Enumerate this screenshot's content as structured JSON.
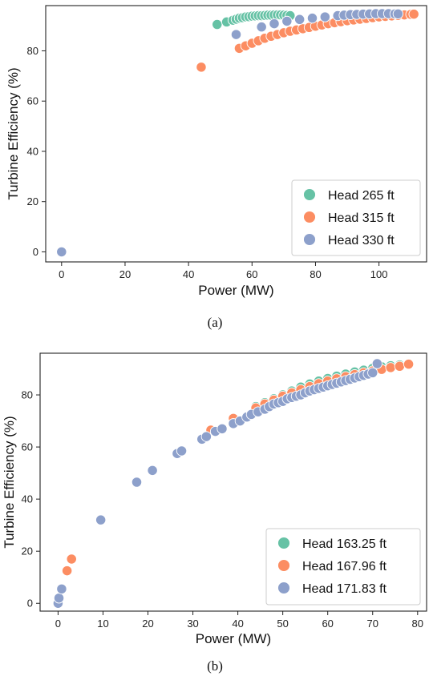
{
  "chart_data": [
    {
      "type": "scatter",
      "caption": "(a)",
      "xlabel": "Power (MW)",
      "ylabel": "Turbine Efficiency (%)",
      "xlim": [
        -5,
        115
      ],
      "ylim": [
        -4,
        98
      ],
      "xticks": [
        0,
        20,
        40,
        60,
        80,
        100
      ],
      "yticks": [
        0,
        20,
        40,
        60,
        80
      ],
      "grid": false,
      "legend": "bottom-right",
      "series": [
        {
          "name": "Head 265 ft",
          "color": "#66c2a5",
          "points": [
            [
              49,
              90.5
            ],
            [
              52,
              91.5
            ],
            [
              54,
              92.2
            ],
            [
              55,
              92.6
            ],
            [
              56,
              93
            ],
            [
              57,
              93.2
            ],
            [
              58,
              93.5
            ],
            [
              59,
              93.6
            ],
            [
              60,
              93.8
            ],
            [
              61,
              93.9
            ],
            [
              62,
              94
            ],
            [
              63,
              94
            ],
            [
              64,
              94.1
            ],
            [
              65,
              94.2
            ],
            [
              66,
              94.2
            ],
            [
              67,
              94.3
            ],
            [
              68,
              94.3
            ],
            [
              69,
              94.3
            ],
            [
              70,
              94.2
            ],
            [
              71,
              94.1
            ],
            [
              72,
              94
            ]
          ]
        },
        {
          "name": "Head 315 ft",
          "color": "#fc8d62",
          "points": [
            [
              44,
              73.5
            ],
            [
              56,
              81
            ],
            [
              58,
              82
            ],
            [
              60,
              83
            ],
            [
              62,
              84
            ],
            [
              64,
              85
            ],
            [
              66,
              85.8
            ],
            [
              68,
              86.5
            ],
            [
              70,
              87.2
            ],
            [
              72,
              87.8
            ],
            [
              74,
              88.3
            ],
            [
              76,
              88.8
            ],
            [
              78,
              89.3
            ],
            [
              80,
              89.8
            ],
            [
              82,
              90.3
            ],
            [
              84,
              90.8
            ],
            [
              86,
              91.2
            ],
            [
              88,
              91.6
            ],
            [
              90,
              92
            ],
            [
              92,
              92.3
            ],
            [
              94,
              92.6
            ],
            [
              96,
              92.9
            ],
            [
              98,
              93.2
            ],
            [
              100,
              93.5
            ],
            [
              102,
              93.7
            ],
            [
              104,
              93.9
            ],
            [
              106,
              94.1
            ],
            [
              108,
              94.3
            ],
            [
              110,
              94.5
            ],
            [
              111,
              94.6
            ]
          ]
        },
        {
          "name": "Head 330 ft",
          "color": "#8da0cb",
          "points": [
            [
              0,
              0
            ],
            [
              55,
              86.5
            ],
            [
              63,
              89.5
            ],
            [
              67,
              90.8
            ],
            [
              71,
              91.8
            ],
            [
              75,
              92.5
            ],
            [
              79,
              93
            ],
            [
              83,
              93.5
            ],
            [
              87,
              94
            ],
            [
              89,
              94.2
            ],
            [
              91,
              94.4
            ],
            [
              93,
              94.5
            ],
            [
              95,
              94.6
            ],
            [
              97,
              94.7
            ],
            [
              99,
              94.8
            ],
            [
              101,
              94.8
            ],
            [
              103,
              94.8
            ],
            [
              105,
              94.7
            ],
            [
              106,
              94.7
            ]
          ]
        }
      ]
    },
    {
      "type": "scatter",
      "caption": "(b)",
      "xlabel": "Power (MW)",
      "ylabel": "Turbine Efficiency (%)",
      "xlim": [
        -4,
        82
      ],
      "ylim": [
        -3,
        96
      ],
      "xticks": [
        0,
        10,
        20,
        30,
        40,
        50,
        60,
        70,
        80
      ],
      "yticks": [
        0,
        20,
        40,
        60,
        80
      ],
      "grid": false,
      "legend": "bottom-right",
      "series": [
        {
          "name": "Head 163.25 ft",
          "color": "#66c2a5",
          "points": [
            [
              44,
              75.5
            ],
            [
              46,
              77
            ],
            [
              48,
              78.5
            ],
            [
              50,
              80
            ],
            [
              52,
              81.5
            ],
            [
              54,
              83
            ],
            [
              56,
              84.2
            ],
            [
              58,
              85.3
            ],
            [
              60,
              86.3
            ],
            [
              62,
              87.2
            ],
            [
              64,
              88
            ],
            [
              66,
              88.8
            ],
            [
              68,
              89.5
            ],
            [
              70,
              90.2
            ],
            [
              72,
              90.8
            ],
            [
              74,
              91.2
            ],
            [
              76,
              91.5
            ]
          ]
        },
        {
          "name": "Head 167.96 ft",
          "color": "#fc8d62",
          "points": [
            [
              2,
              12.5
            ],
            [
              3,
              17
            ],
            [
              34,
              66.5
            ],
            [
              39,
              71
            ],
            [
              44,
              75
            ],
            [
              46,
              76.5
            ],
            [
              48,
              78
            ],
            [
              50,
              79.5
            ],
            [
              52,
              80.8
            ],
            [
              54,
              82
            ],
            [
              56,
              83.2
            ],
            [
              58,
              84.3
            ],
            [
              60,
              85.3
            ],
            [
              62,
              86.2
            ],
            [
              64,
              87
            ],
            [
              66,
              87.8
            ],
            [
              68,
              88.5
            ],
            [
              70,
              89.2
            ],
            [
              72,
              89.8
            ],
            [
              74,
              90.5
            ],
            [
              76,
              91
            ],
            [
              78,
              91.8
            ]
          ]
        },
        {
          "name": "Head 171.83 ft",
          "color": "#8da0cb",
          "points": [
            [
              0,
              0
            ],
            [
              0.2,
              2
            ],
            [
              0.8,
              5.5
            ],
            [
              9.5,
              32
            ],
            [
              17.5,
              46.5
            ],
            [
              21,
              51
            ],
            [
              26.5,
              57.5
            ],
            [
              27.5,
              58.5
            ],
            [
              32,
              63
            ],
            [
              33,
              64
            ],
            [
              35,
              66
            ],
            [
              36.5,
              67
            ],
            [
              39,
              69
            ],
            [
              40.5,
              70
            ],
            [
              42,
              71.5
            ],
            [
              43,
              72.5
            ],
            [
              44.5,
              73.5
            ],
            [
              46,
              74.5
            ],
            [
              47,
              75.5
            ],
            [
              48,
              76.5
            ],
            [
              49,
              77
            ],
            [
              50,
              77.5
            ],
            [
              51,
              78.5
            ],
            [
              52,
              79
            ],
            [
              53,
              79.5
            ],
            [
              54,
              80
            ],
            [
              55,
              80.8
            ],
            [
              56,
              81.5
            ],
            [
              57,
              82
            ],
            [
              58,
              82.5
            ],
            [
              59,
              83
            ],
            [
              60,
              83.5
            ],
            [
              61,
              84
            ],
            [
              62,
              84.5
            ],
            [
              63,
              85
            ],
            [
              64,
              85.5
            ],
            [
              65,
              86
            ],
            [
              66,
              86.5
            ],
            [
              67,
              87
            ],
            [
              68,
              87.5
            ],
            [
              69,
              88
            ],
            [
              70,
              88.5
            ],
            [
              71,
              92
            ]
          ]
        }
      ]
    }
  ]
}
